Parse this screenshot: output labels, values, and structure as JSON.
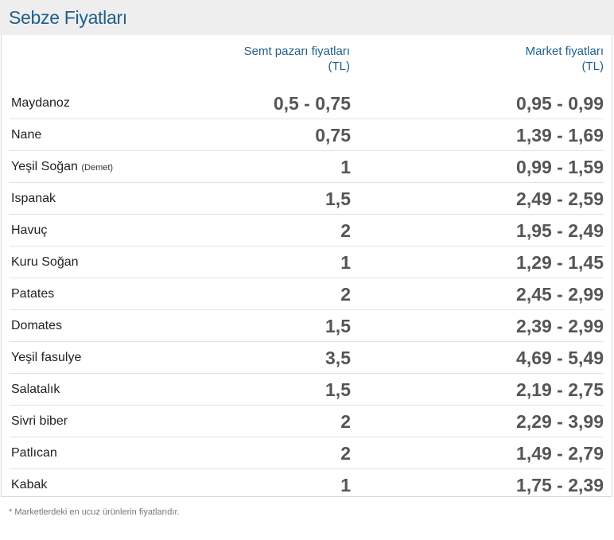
{
  "title": "Sebze Fiyatları",
  "columns": {
    "semt": [
      "Semt pazarı fiyatları",
      "(TL)"
    ],
    "market": [
      "Market fiyatları",
      "(TL)"
    ]
  },
  "rows": [
    {
      "name": "Maydanoz",
      "sub": "",
      "semt": "0,5 - 0,75",
      "market": "0,95 - 0,99"
    },
    {
      "name": "Nane",
      "sub": "",
      "semt": "0,75",
      "market": "1,39 - 1,69"
    },
    {
      "name": "Yeşil Soğan",
      "sub": "(Demet)",
      "semt": "1",
      "market": "0,99 - 1,59"
    },
    {
      "name": "Ispanak",
      "sub": "",
      "semt": "1,5",
      "market": "2,49 - 2,59"
    },
    {
      "name": "Havuç",
      "sub": "",
      "semt": "2",
      "market": "1,95 - 2,49"
    },
    {
      "name": "Kuru Soğan",
      "sub": "",
      "semt": "1",
      "market": "1,29 - 1,45"
    },
    {
      "name": "Patates",
      "sub": "",
      "semt": "2",
      "market": "2,45 - 2,99"
    },
    {
      "name": "Domates",
      "sub": "",
      "semt": "1,5",
      "market": "2,39 - 2,99"
    },
    {
      "name": "Yeşil fasulye",
      "sub": "",
      "semt": "3,5",
      "market": "4,69 - 5,49"
    },
    {
      "name": "Salatalık",
      "sub": "",
      "semt": "1,5",
      "market": "2,19 - 2,75"
    },
    {
      "name": "Sivri biber",
      "sub": "",
      "semt": "2",
      "market": "2,29 - 3,99"
    },
    {
      "name": "Patlıcan",
      "sub": "",
      "semt": "2",
      "market": "1,49 - 2,79"
    },
    {
      "name": "Kabak",
      "sub": "",
      "semt": "1",
      "market": "1,75 - 2,39"
    }
  ],
  "footnote": "* Marketlerdeki en ucuz ürünlerin fiyatlarıdır."
}
